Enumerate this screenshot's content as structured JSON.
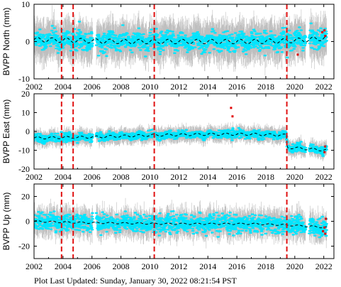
{
  "footer": "Plot Last Updated:   Sunday, January 30, 2022 08:21:54 PST",
  "colors": {
    "scatter": "#00e5ff",
    "errorbar": "#b4b4b4",
    "trend": "#000000",
    "event_line": "#e01010",
    "outlier": "#e00000"
  },
  "chart_data": [
    {
      "type": "scatter",
      "station": "BVPP",
      "ylabel": "BVPP North (mm)",
      "xlim": [
        2002,
        2022.7
      ],
      "ylim": [
        -10,
        10
      ],
      "xticks": [
        2002,
        2004,
        2006,
        2008,
        2010,
        2012,
        2014,
        2016,
        2018,
        2020,
        2022
      ],
      "yticks": [
        -10,
        0,
        10
      ],
      "event_lines": [
        2003.9,
        2004.7,
        2010.3,
        2019.45
      ],
      "trend": {
        "x": [
          2002,
          2005,
          2008,
          2011,
          2014,
          2017,
          2019.45,
          2021,
          2022.2
        ],
        "y": [
          0.5,
          0.3,
          0.0,
          0.0,
          0.0,
          0.0,
          0.2,
          0.5,
          1.0
        ]
      },
      "scatter_spread_mm": 2.2,
      "errorbar_halfwidth_mm": 4.0,
      "outliers": [
        {
          "x": 2022.05,
          "y": 3.0
        },
        {
          "x": 2022.1,
          "y": 1.5
        },
        {
          "x": 2021.9,
          "y": 2.5
        },
        {
          "x": 2020.2,
          "y": -3.5
        }
      ]
    },
    {
      "type": "scatter",
      "station": "BVPP",
      "ylabel": "BVPP East (mm)",
      "xlim": [
        2002,
        2022.7
      ],
      "ylim": [
        -20,
        20
      ],
      "xticks": [
        2002,
        2004,
        2006,
        2008,
        2010,
        2012,
        2014,
        2016,
        2018,
        2020,
        2022
      ],
      "yticks": [
        -20,
        -10,
        0,
        10,
        20
      ],
      "event_lines": [
        2003.9,
        2004.7,
        2010.3,
        2019.45
      ],
      "trend": {
        "x": [
          2002,
          2006,
          2010.3,
          2014,
          2017,
          2019.4,
          2019.5,
          2022.2
        ],
        "y": [
          -3.5,
          -3.0,
          -2.0,
          -1.5,
          -1.5,
          -2.0,
          -8.5,
          -10.0
        ]
      },
      "scatter_spread_mm": 1.8,
      "errorbar_halfwidth_mm": 3.0,
      "outliers": [
        {
          "x": 2015.6,
          "y": 12.5
        },
        {
          "x": 2015.7,
          "y": 8.0
        },
        {
          "x": 2022.1,
          "y": -8.0
        },
        {
          "x": 2022.05,
          "y": -11.0
        }
      ]
    },
    {
      "type": "scatter",
      "station": "BVPP",
      "ylabel": "BVPP Up (mm)",
      "xlim": [
        2002,
        2022.7
      ],
      "ylim": [
        -30,
        30
      ],
      "xticks": [
        2002,
        2004,
        2006,
        2008,
        2010,
        2012,
        2014,
        2016,
        2018,
        2020,
        2022
      ],
      "yticks": [
        -20,
        0,
        20
      ],
      "event_lines": [
        2003.9,
        2004.7,
        2010.3,
        2019.45
      ],
      "trend": {
        "x": [
          2002,
          2005,
          2008,
          2011,
          2014,
          2017,
          2019.45,
          2021,
          2022.2
        ],
        "y": [
          0.0,
          -1.0,
          -1.5,
          -2.0,
          -2.0,
          -2.0,
          -3.0,
          -4.0,
          -5.0
        ]
      },
      "scatter_spread_mm": 6.0,
      "errorbar_halfwidth_mm": 8.0,
      "outliers": [
        {
          "x": 2022.05,
          "y": -5.0
        },
        {
          "x": 2022.1,
          "y": -10.0
        },
        {
          "x": 2021.95,
          "y": -8.0
        },
        {
          "x": 2022.15,
          "y": 2.0
        }
      ]
    }
  ]
}
